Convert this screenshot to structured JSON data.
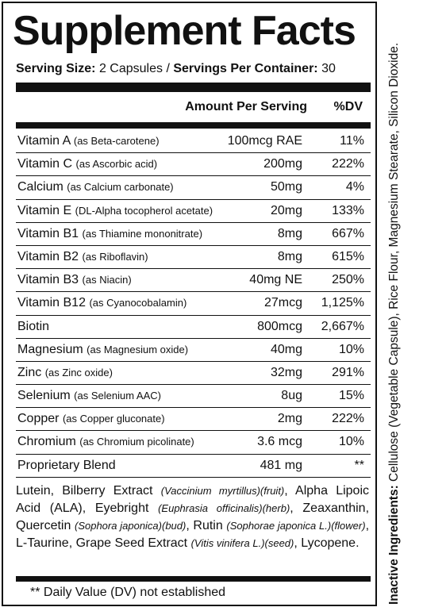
{
  "title": "Supplement Facts",
  "serving": {
    "size_label": "Serving Size:",
    "size_value": "2 Capsules",
    "sep": "/",
    "per_label": "Servings Per Container:",
    "per_value": "30"
  },
  "header": {
    "amount": "Amount Per Serving",
    "dv": "%DV"
  },
  "rows": [
    {
      "name": "Vitamin A",
      "source": "(as Beta-carotene)",
      "amount": "100mcg RAE",
      "dv": "11%"
    },
    {
      "name": "Vitamin C",
      "source": "(as Ascorbic acid)",
      "amount": "200mg",
      "dv": "222%"
    },
    {
      "name": "Calcium",
      "source": "(as Calcium carbonate)",
      "amount": "50mg",
      "dv": "4%"
    },
    {
      "name": "Vitamin E",
      "source": "(DL-Alpha tocopherol acetate)",
      "amount": "20mg",
      "dv": "133%"
    },
    {
      "name": "Vitamin B1",
      "source": "(as Thiamine mononitrate)",
      "amount": "8mg",
      "dv": "667%"
    },
    {
      "name": "Vitamin B2",
      "source": "(as Riboflavin)",
      "amount": "8mg",
      "dv": "615%"
    },
    {
      "name": "Vitamin B3",
      "source": "(as Niacin)",
      "amount": "40mg NE",
      "dv": "250%"
    },
    {
      "name": "Vitamin B12",
      "source": "(as Cyanocobalamin)",
      "amount": "27mcg",
      "dv": "1,125%"
    },
    {
      "name": "Biotin",
      "source": "",
      "amount": "800mcg",
      "dv": "2,667%"
    },
    {
      "name": "Magnesium",
      "source": "(as Magnesium oxide)",
      "amount": "40mg",
      "dv": "10%"
    },
    {
      "name": "Zinc",
      "source": "(as Zinc oxide)",
      "amount": "32mg",
      "dv": "291%"
    },
    {
      "name": "Selenium",
      "source": "(as Selenium AAC)",
      "amount": "8ug",
      "dv": "15%"
    },
    {
      "name": "Copper",
      "source": "(as Copper gluconate)",
      "amount": "2mg",
      "dv": "222%"
    },
    {
      "name": "Chromium",
      "source": "(as Chromium picolinate)",
      "amount": "3.6 mcg",
      "dv": "10%"
    },
    {
      "name": "Proprietary Blend",
      "source": "",
      "amount": "481 mg",
      "dv": "**"
    }
  ],
  "blend": [
    {
      "t": "Lutein, Bilberry Extract ",
      "i": false
    },
    {
      "t": "(Vaccinium myrtillus)(fruit)",
      "i": true
    },
    {
      "t": ", Alpha Lipoic Acid (ALA), Eyebright ",
      "i": false
    },
    {
      "t": "(Euphrasia officinalis)(herb)",
      "i": true
    },
    {
      "t": ", Zeaxanthin, Quercetin ",
      "i": false
    },
    {
      "t": "(Sophora japonica)(bud)",
      "i": true
    },
    {
      "t": ", Rutin ",
      "i": false
    },
    {
      "t": "(Sophorae japonica L.)(flower)",
      "i": true
    },
    {
      "t": ", L-Taurine, Grape Seed Extract ",
      "i": false
    },
    {
      "t": "(Vitis vinifera L.)(seed)",
      "i": true
    },
    {
      "t": ", Lycopene.",
      "i": false
    }
  ],
  "footnote": "** Daily Value (DV) not established",
  "inactive": {
    "label": "Inactive Ingredients:",
    "text": " Cellulose (Vegetable Capsule), Rice Flour, Magnesium Stearate, Silicon Dioxide."
  }
}
